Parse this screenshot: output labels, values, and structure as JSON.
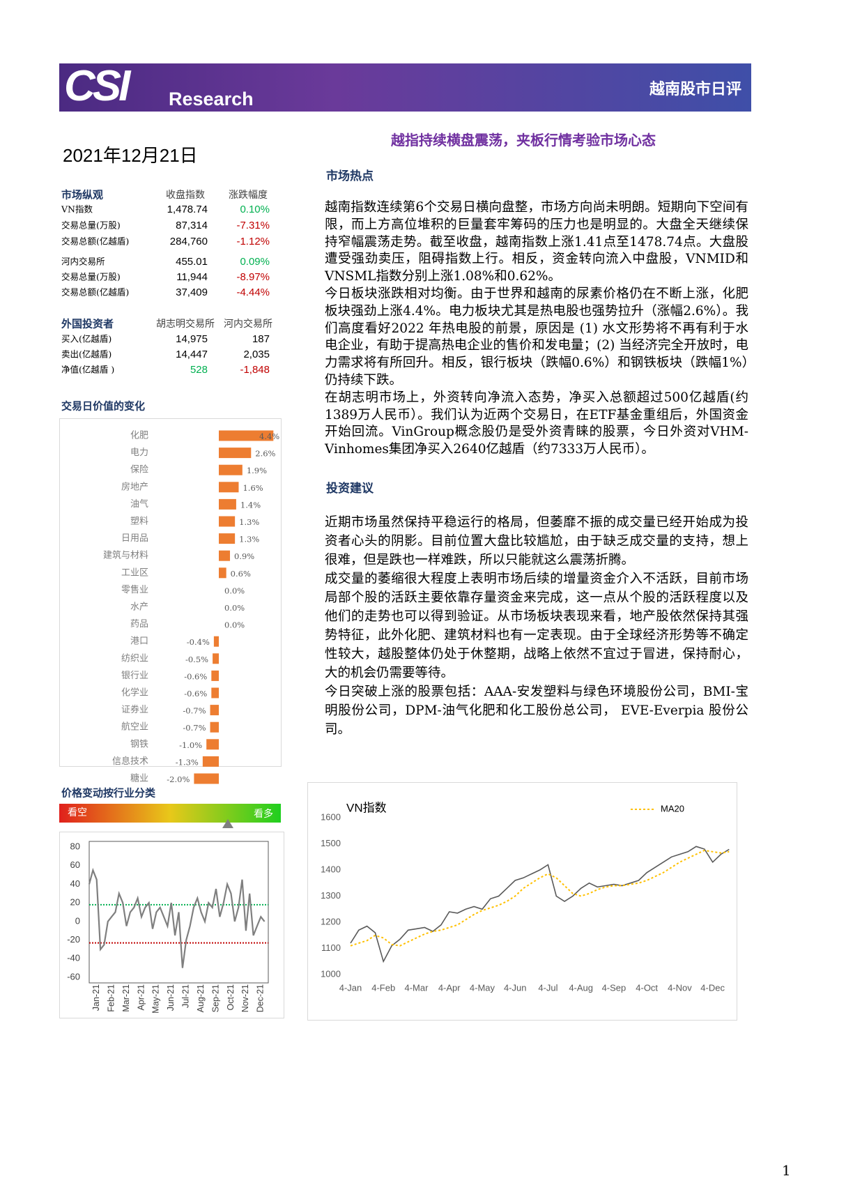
{
  "header": {
    "logo": "CSI",
    "brand": "Research",
    "title": "越南股市日评"
  },
  "date": "2021年12月21日",
  "market_overview": {
    "headers": [
      "市场纵观",
      "收盘指数",
      "涨跌幅度"
    ],
    "rows": [
      [
        "VN指数",
        "1,478.74",
        "0.10%"
      ],
      [
        "交易总量(万股)",
        "87,314",
        "-7.31%"
      ],
      [
        "交易总额(亿越盾)",
        "284,760",
        "-1.12%"
      ],
      [
        "河内交易所",
        "455.01",
        "0.09%"
      ],
      [
        "交易总量(万股)",
        "11,944",
        "-8.97%"
      ],
      [
        "交易总额(亿越盾)",
        "37,409",
        "-4.44%"
      ]
    ]
  },
  "foreign_investors": {
    "headers": [
      "外国投资者",
      "胡志明交易所",
      "河内交易所"
    ],
    "rows": [
      [
        "买入(亿越盾)",
        "14,975",
        "187"
      ],
      [
        "卖出(亿越盾)",
        "14,447",
        "2,035"
      ],
      [
        "净值(亿越盾 )",
        "528",
        "-1,848"
      ]
    ]
  },
  "chart_data": [
    {
      "type": "bar",
      "title": "交易日价值的变化",
      "color": "#ed7d31",
      "categories": [
        "化肥",
        "电力",
        "保险",
        "房地产",
        "油气",
        "塑料",
        "日用品",
        "建筑与材料",
        "工业区",
        "零售业",
        "水产",
        "药品",
        "港口",
        "纺织业",
        "银行业",
        "化学业",
        "证券业",
        "航空业",
        "钢铁",
        "信息技术",
        "糖业"
      ],
      "values": [
        4.4,
        2.6,
        1.9,
        1.6,
        1.4,
        1.3,
        1.3,
        0.9,
        0.6,
        0.0,
        0.0,
        0.0,
        -0.4,
        -0.5,
        -0.6,
        -0.6,
        -0.7,
        -0.7,
        -1.0,
        -1.3,
        -2.0
      ],
      "value_labels": [
        "4.4%",
        "2.6%",
        "1.9%",
        "1.6%",
        "1.4%",
        "1.3%",
        "1.3%",
        "0.9%",
        "0.6%",
        "0.0%",
        "0.0%",
        "0.0%",
        "-0.4%",
        "-0.5%",
        "-0.6%",
        "-0.6%",
        "-0.7%",
        "-0.7%",
        "-1.0%",
        "-1.3%",
        "-2.0%"
      ]
    },
    {
      "type": "line",
      "title": "价格变动按行业分类",
      "bearish_label": "看空",
      "bullish_label": "看多",
      "color": "#7f7f7f",
      "x": [
        0,
        0.25,
        0.5,
        0.75,
        1,
        1.25,
        1.5,
        1.75,
        2,
        2.25,
        2.5,
        2.75,
        3,
        3.25,
        3.5,
        3.75,
        4,
        4.25,
        4.5,
        4.75,
        5,
        5.25,
        5.5,
        5.75,
        6,
        6.25,
        6.5,
        6.75,
        7,
        7.25,
        7.5,
        7.75,
        8,
        8.25,
        8.5,
        8.75,
        9,
        9.25,
        9.5,
        9.75,
        10,
        10.25,
        10.5,
        10.75,
        11,
        11.25,
        11.5,
        11.75
      ],
      "values": [
        40,
        55,
        45,
        -30,
        -25,
        0,
        5,
        10,
        30,
        20,
        -5,
        10,
        15,
        25,
        5,
        15,
        20,
        -8,
        10,
        15,
        5,
        -5,
        20,
        -15,
        10,
        -50,
        -20,
        -5,
        15,
        25,
        10,
        0,
        20,
        15,
        35,
        5,
        20,
        40,
        30,
        0,
        15,
        45,
        -10,
        30,
        -15,
        -5,
        5,
        0
      ],
      "xlim": [
        0,
        12
      ],
      "xticks": [
        {
          "value": 0.5,
          "label": "Jan-21"
        },
        {
          "value": 1.5,
          "label": "Feb-21"
        },
        {
          "value": 2.5,
          "label": "Mar-21"
        },
        {
          "value": 3.5,
          "label": "Apr-21"
        },
        {
          "value": 4.5,
          "label": "May-21"
        },
        {
          "value": 5.5,
          "label": "Jun-21"
        },
        {
          "value": 6.5,
          "label": "Jul-21"
        },
        {
          "value": 7.5,
          "label": "Aug-21"
        },
        {
          "value": 8.5,
          "label": "Sep-21"
        },
        {
          "value": 9.5,
          "label": "Oct-21"
        },
        {
          "value": 10.5,
          "label": "Nov-21"
        },
        {
          "value": 11.5,
          "label": "Dec-21"
        }
      ],
      "ylim": [
        -60,
        80
      ],
      "yticks": [
        -60,
        -40,
        -20,
        0,
        20,
        40,
        60,
        80
      ],
      "reference_lines": [
        {
          "value": 18,
          "color": "#00b050"
        },
        {
          "value": -23,
          "color": "#c00000"
        }
      ]
    },
    {
      "type": "line",
      "title": "VN指数",
      "x": [
        0,
        0.25,
        0.5,
        0.75,
        1,
        1.25,
        1.5,
        1.75,
        2,
        2.25,
        2.5,
        2.75,
        3,
        3.25,
        3.5,
        3.75,
        4,
        4.25,
        4.5,
        4.75,
        5,
        5.25,
        5.5,
        5.75,
        6,
        6.25,
        6.5,
        6.75,
        7,
        7.25,
        7.5,
        7.75,
        8,
        8.25,
        8.5,
        8.75,
        9,
        9.25,
        9.5,
        9.75,
        10,
        10.25,
        10.5,
        10.75,
        11,
        11.25,
        11.5
      ],
      "series": [
        {
          "color": "#595959",
          "values": [
            1120,
            1170,
            1185,
            1160,
            1050,
            1110,
            1135,
            1170,
            1175,
            1180,
            1165,
            1190,
            1240,
            1235,
            1250,
            1260,
            1250,
            1290,
            1300,
            1330,
            1360,
            1370,
            1385,
            1400,
            1420,
            1300,
            1280,
            1300,
            1330,
            1350,
            1335,
            1340,
            1345,
            1340,
            1350,
            1360,
            1390,
            1410,
            1430,
            1450,
            1460,
            1470,
            1490,
            1480,
            1430,
            1460,
            1479
          ]
        },
        {
          "name": "MA20",
          "color": "#ffc000",
          "values": [
            1110,
            1120,
            1130,
            1150,
            1140,
            1115,
            1110,
            1125,
            1140,
            1155,
            1165,
            1170,
            1180,
            1190,
            1210,
            1230,
            1245,
            1255,
            1265,
            1280,
            1300,
            1330,
            1350,
            1370,
            1385,
            1370,
            1340,
            1310,
            1300,
            1310,
            1325,
            1335,
            1340,
            1340,
            1345,
            1350,
            1360,
            1375,
            1390,
            1410,
            1430,
            1445,
            1460,
            1475,
            1470,
            1465,
            1470
          ]
        }
      ],
      "xlim": [
        0,
        11.6
      ],
      "xticks": [
        {
          "value": 0,
          "label": "4-Jan"
        },
        {
          "value": 1,
          "label": "4-Feb"
        },
        {
          "value": 2,
          "label": "4-Mar"
        },
        {
          "value": 3,
          "label": "4-Apr"
        },
        {
          "value": 4,
          "label": "4-May"
        },
        {
          "value": 5,
          "label": "4-Jun"
        },
        {
          "value": 6,
          "label": "4-Jul"
        },
        {
          "value": 7,
          "label": "4-Aug"
        },
        {
          "value": 8,
          "label": "4-Sep"
        },
        {
          "value": 9,
          "label": "4-Oct"
        },
        {
          "value": 10,
          "label": "4-Nov"
        },
        {
          "value": 11,
          "label": "4-Dec"
        }
      ],
      "ylim": [
        1000,
        1600
      ],
      "yticks": [
        1000,
        1100,
        1200,
        1300,
        1400,
        1500,
        1600
      ]
    }
  ],
  "article": {
    "title": "越指持续横盘震荡，夹板行情考验市场心态",
    "hotspots": {
      "heading": "市场热点",
      "paragraphs": [
        "越南指数连续第6个交易日横向盘整，市场方向尚未明朗。短期向下空间有限，而上方高位堆积的巨量套牢筹码的压力也是明显的。大盘全天继续保持窄幅震荡走势。截至收盘，越南指数上涨1.41点至1478.74点。大盘股遭受强劲卖压，阻碍指数上行。相反，资金转向流入中盘股，VNMID和VNSML指数分别上涨1.08%和0.62%。",
        "今日板块涨跌相对均衡。由于世界和越南的尿素价格仍在不断上涨，化肥板块强劲上涨4.4%。电力板块尤其是热电股也强势拉升（涨幅2.6%）。我们高度看好2022 年热电股的前景，原因是 (1) 水文形势将不再有利于水电企业，有助于提高热电企业的售价和发电量；(2) 当经济完全开放时，电力需求将有所回升。相反，银行板块（跌幅0.6%）和钢铁板块（跌幅1%）仍持续下跌。",
        "在胡志明市场上，外资转向净流入态势，净买入总额超过500亿越盾(约1389万人民币）。我们认为近两个交易日，在ETF基金重组后，外国资金开始回流。VinGroup概念股仍是受外资青睐的股票，今日外资对VHM-Vinhomes集团净买入2640亿越盾（约7333万人民币）。"
      ]
    },
    "advice": {
      "heading": "投资建议",
      "paragraphs": [
        "近期市场虽然保持平稳运行的格局，但萎靡不振的成交量已经开始成为投资者心头的阴影。目前位置大盘比较尴尬，由于缺乏成交量的支持，想上很难，但是跌也一样难跌，所以只能就这么震荡折腾。",
        "成交量的萎缩很大程度上表明市场后续的增量资金介入不活跃，目前市场局部个股的活跃主要依靠存量资金来完成，这一点从个股的活跃程度以及他们的走势也可以得到验证。从市场板块表现来看，地产股依然保持其强势特征，此外化肥、建筑材料也有一定表现。由于全球经济形势等不确定性较大，越股整体仍处于休整期，战略上依然不宜过于冒进，保持耐心，大的机会仍需要等待。",
        "今日突破上涨的股票包括：AAA-安发塑料与绿色环境股份公司，BMI-宝明股份公司，DPM-油气化肥和化工股份总公司， EVE-Everpia 股份公司。"
      ]
    }
  },
  "page_number": "1"
}
